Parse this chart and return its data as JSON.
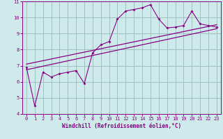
{
  "xlabel": "Windchill (Refroidissement éolien,°C)",
  "bg_color": "#ceeaea",
  "line_color": "#880088",
  "grid_color": "#99bbbb",
  "x_data": [
    0,
    1,
    2,
    3,
    4,
    5,
    6,
    7,
    8,
    9,
    10,
    11,
    12,
    13,
    14,
    15,
    16,
    17,
    18,
    19,
    20,
    21,
    22,
    23
  ],
  "y_data": [
    6.9,
    4.5,
    6.6,
    6.3,
    6.5,
    6.6,
    6.7,
    5.9,
    7.8,
    8.3,
    8.5,
    9.9,
    10.4,
    10.5,
    10.6,
    10.8,
    9.9,
    9.35,
    9.4,
    9.5,
    10.4,
    9.6,
    9.5,
    9.4
  ],
  "trend1_x": [
    0,
    23
  ],
  "trend1_y": [
    6.75,
    9.3
  ],
  "trend2_x": [
    0,
    23
  ],
  "trend2_y": [
    7.1,
    9.55
  ],
  "xlim": [
    -0.5,
    23.5
  ],
  "ylim": [
    4,
    11
  ],
  "yticks": [
    4,
    5,
    6,
    7,
    8,
    9,
    10,
    11
  ],
  "xticks": [
    0,
    1,
    2,
    3,
    4,
    5,
    6,
    7,
    8,
    9,
    10,
    11,
    12,
    13,
    14,
    15,
    16,
    17,
    18,
    19,
    20,
    21,
    22,
    23
  ],
  "label_fontsize": 5.5,
  "tick_fontsize": 5.0
}
